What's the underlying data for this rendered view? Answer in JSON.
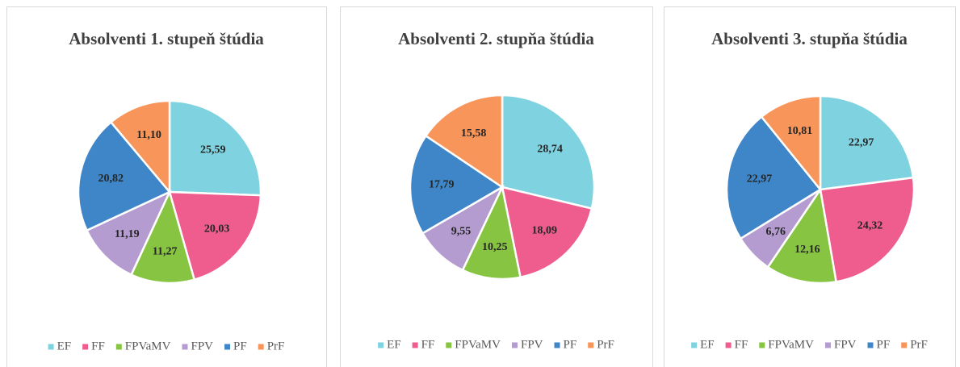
{
  "chart_data": [
    {
      "type": "pie",
      "title": "Absolventi 1. stupeň štúdia",
      "categories": [
        "EF",
        "FF",
        "FPVaMV",
        "FPV",
        "PF",
        "PrF"
      ],
      "values": [
        25.59,
        20.03,
        11.27,
        11.19,
        20.82,
        11.1
      ],
      "value_labels": [
        "25,59",
        "20,03",
        "11,27",
        "11,19",
        "20,82",
        "11,10"
      ],
      "colors": [
        "#7fd3e0",
        "#ef5d8f",
        "#86c441",
        "#b49cd0",
        "#3f86c8",
        "#f7955a"
      ]
    },
    {
      "type": "pie",
      "title": "Absolventi 2. stupňa štúdia",
      "categories": [
        "EF",
        "FF",
        "FPVaMV",
        "FPV",
        "PF",
        "PrF"
      ],
      "values": [
        28.74,
        18.09,
        10.25,
        9.55,
        17.79,
        15.58
      ],
      "value_labels": [
        "28,74",
        "18,09",
        "10,25",
        "9,55",
        "17,79",
        "15,58"
      ],
      "colors": [
        "#7fd3e0",
        "#ef5d8f",
        "#86c441",
        "#b49cd0",
        "#3f86c8",
        "#f7955a"
      ]
    },
    {
      "type": "pie",
      "title": "Absolventi 3. stupňa štúdia",
      "categories": [
        "EF",
        "FF",
        "FPVaMV",
        "FPV",
        "PF",
        "PrF"
      ],
      "values": [
        22.97,
        24.32,
        12.16,
        6.76,
        22.97,
        10.81
      ],
      "value_labels": [
        "22,97",
        "24,32",
        "12,16",
        "6,76",
        "22,97",
        "10,81"
      ],
      "colors": [
        "#7fd3e0",
        "#ef5d8f",
        "#86c441",
        "#b49cd0",
        "#3f86c8",
        "#f7955a"
      ]
    }
  ]
}
